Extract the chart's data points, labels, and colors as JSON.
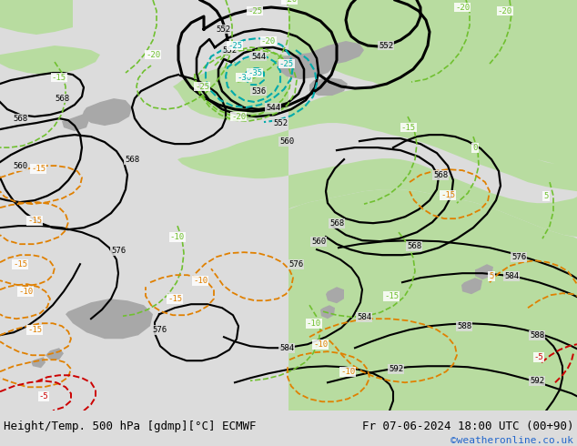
{
  "title_left": "Height/Temp. 500 hPa [gdmp][°C] ECMWF",
  "title_right": "Fr 07-06-2024 18:00 UTC (00+90)",
  "credit": "©weatheronline.co.uk",
  "bg_color": "#dcdcdc",
  "land_green": "#b8dca0",
  "land_gray": "#a8a8a8",
  "sea_color": "#dcdcdc",
  "contour_black_color": "#000000",
  "contour_green_color": "#70c030",
  "contour_cyan_color": "#00aaaa",
  "contour_orange_color": "#e08000",
  "contour_red_color": "#cc0000",
  "bottom_bar_color": "#dcdcdc",
  "font_size_bottom": 9,
  "font_size_credit": 8
}
